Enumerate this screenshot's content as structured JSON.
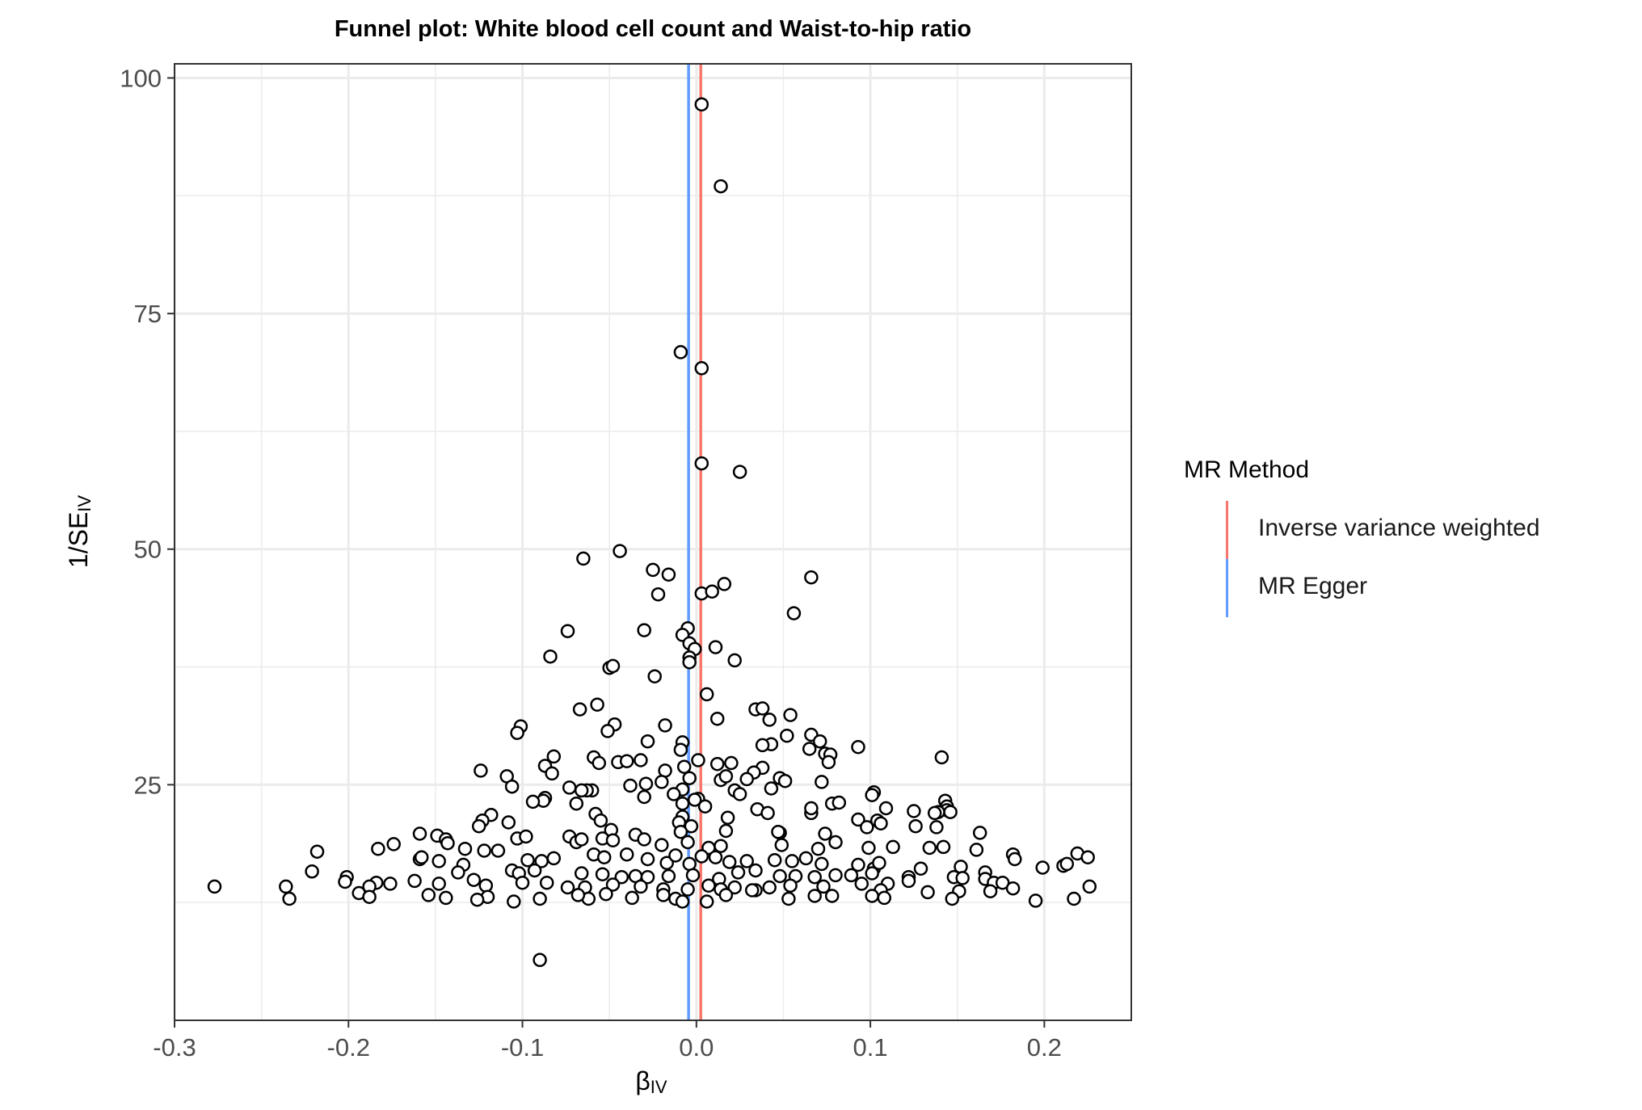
{
  "chart_data": {
    "type": "scatter",
    "title": "Funnel plot: White blood cell count and Waist-to-hip ratio",
    "xlabel": "βIV",
    "ylabel": "1/SEIV",
    "xlabel_main": "β",
    "xlabel_sub": "IV",
    "ylabel_main": "1/SE",
    "ylabel_sub": "IV",
    "xlim": [
      -0.3,
      0.25
    ],
    "ylim": [
      0,
      101.5
    ],
    "xticks": [
      -0.3,
      -0.2,
      -0.1,
      0.0,
      0.1,
      0.2
    ],
    "xtick_labels": [
      "-0.3",
      "-0.2",
      "-0.1",
      "0.0",
      "0.1",
      "0.2"
    ],
    "yticks": [
      25,
      50,
      75,
      100
    ],
    "ytick_labels": [
      "25",
      "50",
      "75",
      "100"
    ],
    "grid": true,
    "legend_position": "right",
    "legend": {
      "title": "MR Method",
      "entries": [
        {
          "label": "Inverse variance weighted",
          "color": "#F8766D"
        },
        {
          "label": "MR Egger",
          "color": "#619CFF"
        }
      ]
    },
    "reference_lines": [
      {
        "name": "Inverse variance weighted",
        "x": 0.0025,
        "color": "#F8766D"
      },
      {
        "name": "MR Egger",
        "x": -0.0045,
        "color": "#619CFF"
      }
    ],
    "marker": {
      "fill": "#ffffff",
      "stroke": "#000000"
    },
    "points": [
      [
        0.003,
        97.2
      ],
      [
        0.014,
        88.5
      ],
      [
        -0.009,
        70.9
      ],
      [
        0.003,
        69.2
      ],
      [
        0.003,
        59.1
      ],
      [
        0.025,
        58.2
      ],
      [
        -0.065,
        49.0
      ],
      [
        -0.044,
        49.8
      ],
      [
        -0.025,
        47.8
      ],
      [
        -0.016,
        47.3
      ],
      [
        0.016,
        46.3
      ],
      [
        0.066,
        47.0
      ],
      [
        0.003,
        45.3
      ],
      [
        0.009,
        45.5
      ],
      [
        -0.022,
        45.2
      ],
      [
        0.056,
        43.2
      ],
      [
        -0.074,
        41.3
      ],
      [
        -0.03,
        41.4
      ],
      [
        -0.005,
        41.6
      ],
      [
        -0.008,
        40.9
      ],
      [
        -0.004,
        40.0
      ],
      [
        -0.001,
        39.4
      ],
      [
        0.011,
        39.6
      ],
      [
        -0.004,
        38.5
      ],
      [
        -0.004,
        38.0
      ],
      [
        0.022,
        38.2
      ],
      [
        -0.084,
        38.6
      ],
      [
        -0.05,
        37.4
      ],
      [
        -0.048,
        37.6
      ],
      [
        -0.024,
        36.5
      ],
      [
        0.006,
        34.6
      ],
      [
        -0.057,
        33.5
      ],
      [
        -0.067,
        33.0
      ],
      [
        0.034,
        33.0
      ],
      [
        0.038,
        33.1
      ],
      [
        0.054,
        32.4
      ],
      [
        0.042,
        31.9
      ],
      [
        0.012,
        32.0
      ],
      [
        -0.047,
        31.4
      ],
      [
        -0.101,
        31.2
      ],
      [
        -0.018,
        31.3
      ],
      [
        -0.051,
        30.7
      ],
      [
        -0.103,
        30.5
      ],
      [
        0.066,
        30.3
      ],
      [
        0.052,
        30.2
      ],
      [
        -0.028,
        29.6
      ],
      [
        -0.008,
        29.5
      ],
      [
        0.043,
        29.3
      ],
      [
        0.038,
        29.2
      ],
      [
        0.071,
        29.6
      ],
      [
        0.093,
        29.0
      ],
      [
        -0.009,
        28.7
      ],
      [
        0.065,
        28.8
      ],
      [
        0.074,
        28.3
      ],
      [
        0.077,
        28.2
      ],
      [
        0.141,
        27.9
      ],
      [
        -0.082,
        28.0
      ],
      [
        -0.059,
        27.9
      ],
      [
        -0.045,
        27.4
      ],
      [
        -0.04,
        27.5
      ],
      [
        -0.032,
        27.6
      ],
      [
        0.001,
        27.6
      ],
      [
        0.012,
        27.2
      ],
      [
        0.02,
        27.3
      ],
      [
        0.076,
        27.4
      ],
      [
        -0.056,
        27.3
      ],
      [
        -0.087,
        27.0
      ],
      [
        -0.007,
        26.9
      ],
      [
        0.038,
        26.8
      ],
      [
        -0.018,
        26.5
      ],
      [
        0.033,
        26.3
      ],
      [
        -0.124,
        26.5
      ],
      [
        -0.109,
        25.9
      ],
      [
        -0.083,
        26.2
      ],
      [
        0.014,
        25.5
      ],
      [
        0.017,
        25.9
      ],
      [
        0.029,
        25.6
      ],
      [
        -0.004,
        25.7
      ],
      [
        -0.02,
        25.3
      ],
      [
        0.048,
        25.7
      ],
      [
        0.051,
        25.4
      ],
      [
        -0.029,
        25.1
      ],
      [
        0.072,
        25.3
      ],
      [
        -0.038,
        24.9
      ],
      [
        -0.106,
        24.8
      ],
      [
        -0.073,
        24.7
      ],
      [
        -0.06,
        24.4
      ],
      [
        -0.063,
        24.4
      ],
      [
        -0.066,
        24.4
      ],
      [
        -0.008,
        24.5
      ],
      [
        -0.013,
        24.0
      ],
      [
        0.022,
        24.4
      ],
      [
        0.043,
        24.6
      ],
      [
        0.025,
        24.0
      ],
      [
        -0.03,
        23.7
      ],
      [
        -0.087,
        23.6
      ],
      [
        -0.088,
        23.3
      ],
      [
        -0.094,
        23.2
      ],
      [
        -0.069,
        23.0
      ],
      [
        0.001,
        23.5
      ],
      [
        -0.001,
        23.4
      ],
      [
        -0.008,
        23.0
      ],
      [
        0.005,
        22.7
      ],
      [
        0.078,
        23.0
      ],
      [
        0.082,
        23.1
      ],
      [
        0.102,
        24.2
      ],
      [
        0.101,
        23.9
      ],
      [
        0.143,
        23.3
      ],
      [
        0.144,
        22.7
      ],
      [
        0.144,
        22.3
      ],
      [
        0.139,
        22.1
      ],
      [
        0.109,
        22.5
      ],
      [
        0.125,
        22.2
      ],
      [
        0.137,
        22.0
      ],
      [
        0.146,
        22.1
      ],
      [
        0.035,
        22.4
      ],
      [
        0.041,
        22.0
      ],
      [
        0.066,
        22.0
      ],
      [
        0.066,
        22.5
      ],
      [
        -0.008,
        21.6
      ],
      [
        -0.058,
        21.9
      ],
      [
        -0.118,
        21.8
      ],
      [
        -0.123,
        21.2
      ],
      [
        -0.108,
        21.0
      ],
      [
        -0.125,
        20.6
      ],
      [
        -0.055,
        21.2
      ],
      [
        -0.01,
        21.0
      ],
      [
        -0.003,
        20.6
      ],
      [
        0.018,
        21.5
      ],
      [
        0.093,
        21.3
      ],
      [
        0.098,
        20.5
      ],
      [
        0.104,
        21.2
      ],
      [
        0.106,
        20.9
      ],
      [
        0.126,
        20.6
      ],
      [
        0.138,
        20.5
      ],
      [
        0.163,
        19.9
      ],
      [
        0.074,
        19.8
      ],
      [
        0.048,
        19.9
      ],
      [
        0.047,
        20.0
      ],
      [
        0.017,
        20.1
      ],
      [
        -0.009,
        20.0
      ],
      [
        -0.049,
        20.2
      ],
      [
        -0.035,
        19.7
      ],
      [
        -0.159,
        19.8
      ],
      [
        -0.149,
        19.6
      ],
      [
        -0.144,
        19.2
      ],
      [
        -0.103,
        19.3
      ],
      [
        -0.098,
        19.5
      ],
      [
        -0.073,
        19.5
      ],
      [
        -0.069,
        18.9
      ],
      [
        -0.066,
        19.2
      ],
      [
        -0.054,
        19.3
      ],
      [
        -0.048,
        19.1
      ],
      [
        -0.03,
        19.2
      ],
      [
        -0.02,
        18.6
      ],
      [
        -0.005,
        18.9
      ],
      [
        0.007,
        18.3
      ],
      [
        0.014,
        18.5
      ],
      [
        0.049,
        18.6
      ],
      [
        0.07,
        18.2
      ],
      [
        0.08,
        18.9
      ],
      [
        0.099,
        18.3
      ],
      [
        0.113,
        18.4
      ],
      [
        0.134,
        18.3
      ],
      [
        0.142,
        18.4
      ],
      [
        0.161,
        18.1
      ],
      [
        0.182,
        17.6
      ],
      [
        0.183,
        17.1
      ],
      [
        0.219,
        17.7
      ],
      [
        0.225,
        17.3
      ],
      [
        -0.218,
        17.9
      ],
      [
        -0.174,
        18.7
      ],
      [
        -0.183,
        18.2
      ],
      [
        -0.143,
        18.8
      ],
      [
        -0.133,
        18.2
      ],
      [
        -0.122,
        18.0
      ],
      [
        -0.114,
        18.0
      ],
      [
        -0.159,
        17.1
      ],
      [
        -0.158,
        17.3
      ],
      [
        -0.148,
        16.9
      ],
      [
        -0.134,
        16.5
      ],
      [
        -0.097,
        17.0
      ],
      [
        -0.089,
        16.9
      ],
      [
        -0.082,
        17.2
      ],
      [
        -0.059,
        17.6
      ],
      [
        -0.053,
        17.3
      ],
      [
        -0.04,
        17.6
      ],
      [
        -0.028,
        17.1
      ],
      [
        -0.017,
        16.7
      ],
      [
        -0.012,
        17.5
      ],
      [
        -0.004,
        16.6
      ],
      [
        0.003,
        17.4
      ],
      [
        0.011,
        17.3
      ],
      [
        0.019,
        16.8
      ],
      [
        0.029,
        16.9
      ],
      [
        0.045,
        17.0
      ],
      [
        0.055,
        16.9
      ],
      [
        0.063,
        17.2
      ],
      [
        0.072,
        16.6
      ],
      [
        0.093,
        16.5
      ],
      [
        0.102,
        16.1
      ],
      [
        0.105,
        16.7
      ],
      [
        0.129,
        16.1
      ],
      [
        0.152,
        16.3
      ],
      [
        0.166,
        15.7
      ],
      [
        0.199,
        16.2
      ],
      [
        0.211,
        16.4
      ],
      [
        0.213,
        16.6
      ],
      [
        -0.221,
        15.8
      ],
      [
        -0.201,
        15.2
      ],
      [
        -0.137,
        15.7
      ],
      [
        -0.128,
        14.9
      ],
      [
        -0.106,
        15.9
      ],
      [
        -0.102,
        15.6
      ],
      [
        -0.093,
        15.9
      ],
      [
        -0.066,
        15.6
      ],
      [
        -0.054,
        15.5
      ],
      [
        -0.043,
        15.2
      ],
      [
        -0.035,
        15.3
      ],
      [
        -0.028,
        15.2
      ],
      [
        -0.016,
        15.3
      ],
      [
        -0.002,
        15.4
      ],
      [
        0.013,
        15.0
      ],
      [
        0.024,
        15.7
      ],
      [
        0.034,
        15.9
      ],
      [
        0.048,
        15.3
      ],
      [
        0.057,
        15.3
      ],
      [
        0.068,
        15.2
      ],
      [
        0.08,
        15.4
      ],
      [
        0.089,
        15.4
      ],
      [
        0.101,
        15.6
      ],
      [
        0.122,
        15.2
      ],
      [
        0.148,
        15.2
      ],
      [
        0.153,
        15.1
      ],
      [
        0.166,
        15.0
      ],
      [
        0.171,
        14.6
      ],
      [
        0.176,
        14.6
      ],
      [
        0.122,
        14.8
      ],
      [
        0.11,
        14.5
      ],
      [
        0.095,
        14.5
      ],
      [
        -0.236,
        14.2
      ],
      [
        -0.277,
        14.2
      ],
      [
        -0.202,
        14.7
      ],
      [
        -0.176,
        14.5
      ],
      [
        -0.184,
        14.6
      ],
      [
        -0.188,
        14.2
      ],
      [
        -0.162,
        14.8
      ],
      [
        -0.148,
        14.5
      ],
      [
        -0.121,
        14.3
      ],
      [
        -0.1,
        14.6
      ],
      [
        -0.086,
        14.6
      ],
      [
        -0.074,
        14.1
      ],
      [
        -0.064,
        14.1
      ],
      [
        -0.048,
        14.4
      ],
      [
        -0.032,
        14.2
      ],
      [
        -0.019,
        13.9
      ],
      [
        -0.005,
        13.9
      ],
      [
        0.007,
        14.3
      ],
      [
        0.014,
        13.9
      ],
      [
        0.022,
        14.1
      ],
      [
        0.034,
        13.8
      ],
      [
        0.042,
        14.1
      ],
      [
        0.054,
        14.3
      ],
      [
        0.073,
        14.2
      ],
      [
        0.106,
        13.8
      ],
      [
        0.133,
        13.6
      ],
      [
        0.151,
        13.7
      ],
      [
        0.169,
        13.7
      ],
      [
        0.182,
        14.0
      ],
      [
        0.226,
        14.2
      ],
      [
        -0.194,
        13.5
      ],
      [
        -0.154,
        13.3
      ],
      [
        -0.144,
        13.0
      ],
      [
        -0.12,
        13.1
      ],
      [
        -0.105,
        12.6
      ],
      [
        -0.09,
        12.9
      ],
      [
        -0.062,
        12.9
      ],
      [
        -0.052,
        13.4
      ],
      [
        -0.037,
        13.0
      ],
      [
        -0.019,
        13.3
      ],
      [
        -0.012,
        12.9
      ],
      [
        -0.008,
        12.6
      ],
      [
        0.006,
        12.6
      ],
      [
        0.017,
        13.3
      ],
      [
        0.053,
        12.9
      ],
      [
        0.068,
        13.2
      ],
      [
        0.078,
        13.2
      ],
      [
        0.101,
        13.2
      ],
      [
        0.108,
        13.0
      ],
      [
        0.147,
        12.9
      ],
      [
        0.195,
        12.7
      ],
      [
        0.217,
        12.9
      ],
      [
        -0.234,
        12.9
      ],
      [
        -0.188,
        13.1
      ],
      [
        -0.126,
        12.8
      ],
      [
        -0.068,
        13.3
      ],
      [
        0.032,
        13.8
      ],
      [
        -0.09,
        6.4
      ]
    ]
  }
}
